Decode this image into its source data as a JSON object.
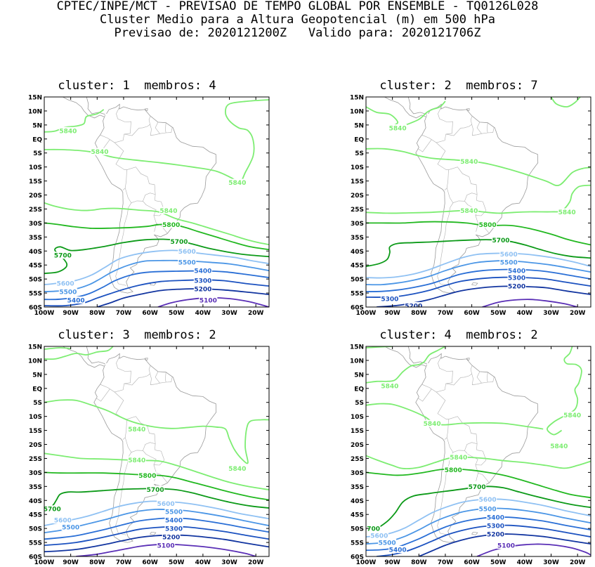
{
  "header": {
    "line1": "CPTEC/INPE/MCT - PREVISAO DE TEMPO GLOBAL POR ENSEMBLE - TQ0126L028",
    "line2": "Cluster Medio para a Altura Geopotencial (m) em 500 hPa",
    "line3": "Previsao de: 2020121200Z   Valido para: 2020121706Z"
  },
  "lat_labels": [
    "15N",
    "10N",
    "5N",
    "EQ",
    "5S",
    "10S",
    "15S",
    "20S",
    "25S",
    "30S",
    "35S",
    "40S",
    "45S",
    "50S",
    "55S",
    "60S"
  ],
  "lon_labels": [
    "100W",
    "90W",
    "80W",
    "70W",
    "60W",
    "50W",
    "40W",
    "30W",
    "20W"
  ],
  "level_colors": {
    "5840": "#7ded72",
    "5800": "#22b820",
    "5700": "#0c9a18",
    "5600": "#8fc1f3",
    "5500": "#4b96e6",
    "5400": "#2a6fd6",
    "5300": "#1c52c0",
    "5200": "#1235a0",
    "5100": "#5a2fb6"
  },
  "panels": [
    {
      "title": "cluster: 1  membros: 4",
      "labels": [
        {
          "text": "5840",
          "lon": -91,
          "lat": 3
        },
        {
          "text": "5840",
          "lon": -79,
          "lat": -4.5
        },
        {
          "text": "5840",
          "lon": -27,
          "lat": -15.5
        },
        {
          "text": "5840",
          "lon": -53,
          "lat": -25.5
        },
        {
          "text": "5800",
          "lon": -52,
          "lat": -30.5
        },
        {
          "text": "5700",
          "lon": -49,
          "lat": -36.5
        },
        {
          "text": "5700",
          "lon": -93,
          "lat": -41.5
        },
        {
          "text": "5600",
          "lon": -46,
          "lat": -40
        },
        {
          "text": "5600",
          "lon": -92,
          "lat": -51.5
        },
        {
          "text": "5500",
          "lon": -46,
          "lat": -44
        },
        {
          "text": "5500",
          "lon": -91,
          "lat": -54.5
        },
        {
          "text": "5400",
          "lon": -40,
          "lat": -47
        },
        {
          "text": "5400",
          "lon": -88,
          "lat": -57.5
        },
        {
          "text": "5300",
          "lon": -40,
          "lat": -50.5
        },
        {
          "text": "5200",
          "lon": -40,
          "lat": -53.5
        },
        {
          "text": "5100",
          "lon": -38,
          "lat": -57.5
        }
      ]
    },
    {
      "title": "cluster: 2  membros: 7",
      "labels": [
        {
          "text": "5840",
          "lon": -88,
          "lat": 4
        },
        {
          "text": "5840",
          "lon": -61,
          "lat": -8
        },
        {
          "text": "5840",
          "lon": -61,
          "lat": -25.5
        },
        {
          "text": "5840",
          "lon": -24,
          "lat": -26
        },
        {
          "text": "5800",
          "lon": -54,
          "lat": -30.5
        },
        {
          "text": "5700",
          "lon": -49,
          "lat": -36
        },
        {
          "text": "5600",
          "lon": -46,
          "lat": -41
        },
        {
          "text": "5500",
          "lon": -46,
          "lat": -44
        },
        {
          "text": "5400",
          "lon": -43,
          "lat": -47
        },
        {
          "text": "5300",
          "lon": -43,
          "lat": -49.5
        },
        {
          "text": "5200",
          "lon": -43,
          "lat": -52.5
        },
        {
          "text": "5300",
          "lon": -91,
          "lat": -57
        },
        {
          "text": "5200",
          "lon": -82,
          "lat": -59.5
        }
      ]
    },
    {
      "title": "cluster: 3  membros: 2",
      "labels": [
        {
          "text": "5840",
          "lon": -65,
          "lat": -14.5
        },
        {
          "text": "5840",
          "lon": -65,
          "lat": -25.5
        },
        {
          "text": "5840",
          "lon": -27,
          "lat": -28.5
        },
        {
          "text": "5800",
          "lon": -61,
          "lat": -31
        },
        {
          "text": "5700",
          "lon": -58,
          "lat": -36
        },
        {
          "text": "5700",
          "lon": -97,
          "lat": -43
        },
        {
          "text": "5600",
          "lon": -54,
          "lat": -41
        },
        {
          "text": "5600",
          "lon": -93,
          "lat": -47
        },
        {
          "text": "5500",
          "lon": -51,
          "lat": -44
        },
        {
          "text": "5500",
          "lon": -90,
          "lat": -49.5
        },
        {
          "text": "5400",
          "lon": -51,
          "lat": -47
        },
        {
          "text": "5300",
          "lon": -51,
          "lat": -50
        },
        {
          "text": "5200",
          "lon": -52,
          "lat": -53
        },
        {
          "text": "5100",
          "lon": -54,
          "lat": -56
        }
      ]
    },
    {
      "title": "cluster: 4  membros: 2",
      "labels": [
        {
          "text": "5840",
          "lon": -91,
          "lat": 1
        },
        {
          "text": "5840",
          "lon": -75,
          "lat": -12.5
        },
        {
          "text": "5840",
          "lon": -22,
          "lat": -9.5
        },
        {
          "text": "5840",
          "lon": -27,
          "lat": -20.5
        },
        {
          "text": "5840",
          "lon": -65,
          "lat": -24.5
        },
        {
          "text": "5800",
          "lon": -67,
          "lat": -29
        },
        {
          "text": "5700",
          "lon": -58,
          "lat": -35
        },
        {
          "text": "5700",
          "lon": -98,
          "lat": -50
        },
        {
          "text": "5600",
          "lon": -54,
          "lat": -39.5
        },
        {
          "text": "5600",
          "lon": -95,
          "lat": -52.5
        },
        {
          "text": "5500",
          "lon": -54,
          "lat": -43
        },
        {
          "text": "5500",
          "lon": -92,
          "lat": -55
        },
        {
          "text": "5400",
          "lon": -51,
          "lat": -46
        },
        {
          "text": "5400",
          "lon": -88,
          "lat": -57.5
        },
        {
          "text": "5300",
          "lon": -51,
          "lat": -49
        },
        {
          "text": "5200",
          "lon": -51,
          "lat": -52
        },
        {
          "text": "5100",
          "lon": -47,
          "lat": -56
        }
      ]
    }
  ]
}
